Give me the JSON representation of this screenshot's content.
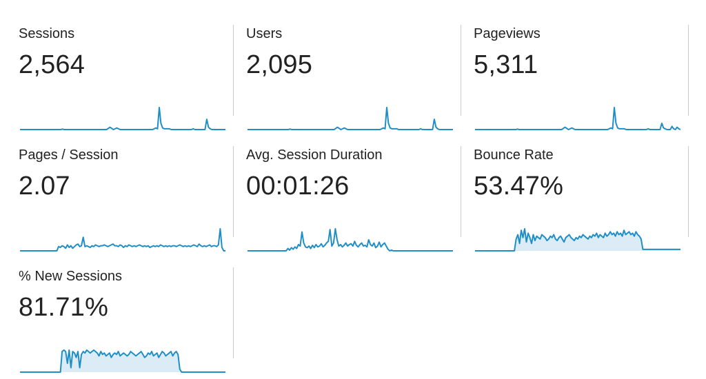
{
  "colors": {
    "line": "#1f8ec7",
    "fill": "#dcecf7",
    "divider": "#cccccc"
  },
  "metrics": [
    {
      "label": "Sessions",
      "value": "2,564",
      "spark": [
        0,
        0,
        0,
        0,
        0,
        0,
        0,
        0,
        0,
        0,
        0,
        0,
        0,
        0,
        0,
        0,
        0,
        0,
        0,
        0,
        0,
        0,
        0,
        0,
        0,
        0.5,
        0,
        0,
        0,
        0,
        0,
        0,
        0,
        0,
        0,
        0,
        0,
        0,
        0,
        0,
        0,
        0,
        0,
        0,
        0,
        0,
        0,
        0,
        0,
        0,
        0,
        0,
        1.5,
        3,
        1.5,
        0,
        1,
        2,
        1,
        0,
        0,
        0,
        0,
        0,
        0,
        0,
        0,
        0,
        0,
        0,
        0,
        0,
        0,
        0,
        0,
        0,
        0,
        0,
        0,
        1,
        2,
        1,
        28,
        8,
        2,
        1,
        1,
        1,
        1,
        0,
        0,
        0,
        0,
        0,
        0,
        0,
        0,
        0,
        0,
        0,
        0,
        0,
        1,
        0,
        0,
        0,
        0,
        0,
        0,
        0,
        13,
        3,
        1,
        0,
        0,
        0,
        0,
        0,
        0,
        0,
        0,
        0
      ],
      "fill": false
    },
    {
      "label": "Users",
      "value": "2,095",
      "spark": [
        0,
        0,
        0,
        0,
        0,
        0,
        0,
        0,
        0,
        0,
        0,
        0,
        0,
        0,
        0,
        0,
        0,
        0,
        0,
        0,
        0,
        0,
        0,
        0,
        0,
        0.5,
        0,
        0,
        0,
        0,
        0,
        0,
        0,
        0,
        0,
        0,
        0,
        0,
        0,
        0,
        0,
        0,
        0,
        0,
        0,
        0,
        0,
        0,
        0,
        0,
        0,
        0,
        1.5,
        3,
        1.5,
        0,
        1,
        2,
        1,
        0,
        0,
        0,
        0,
        0,
        0,
        0,
        0,
        0,
        0,
        0,
        0,
        0,
        0,
        0,
        0,
        0,
        0,
        0,
        0,
        1,
        2,
        1,
        28,
        8,
        2,
        1,
        1,
        1,
        1,
        0,
        0,
        0,
        0,
        0,
        0,
        0,
        0,
        0,
        0,
        0,
        0,
        0,
        1,
        0,
        0,
        0,
        0,
        0,
        0,
        0,
        13,
        3,
        1,
        0,
        0,
        0,
        0,
        0,
        0,
        0,
        0,
        0
      ],
      "fill": false
    },
    {
      "label": "Pageviews",
      "value": "5,311",
      "spark": [
        0,
        0,
        0,
        0,
        0,
        0,
        0,
        0,
        0,
        0,
        0,
        0,
        0,
        0,
        0,
        0,
        0,
        0,
        0,
        0,
        0,
        0,
        0,
        0,
        0,
        0.5,
        0,
        0,
        0,
        0,
        0,
        0,
        0,
        0,
        0,
        0,
        0,
        0,
        0,
        0,
        0,
        0,
        0,
        0,
        0,
        0,
        0,
        0,
        0,
        0,
        0,
        0,
        1.5,
        3,
        1.5,
        0,
        1,
        2,
        1,
        0,
        0,
        0,
        0,
        0,
        0,
        0,
        0,
        0,
        0,
        0,
        0,
        0,
        0,
        0,
        0,
        0,
        0,
        0,
        0,
        1,
        2,
        1,
        28,
        8,
        2,
        1,
        1,
        1,
        1,
        0,
        0,
        0,
        0,
        0,
        0,
        0,
        0,
        0,
        0,
        0,
        0,
        0,
        1,
        0,
        0,
        0,
        0,
        0,
        0,
        0,
        8,
        2,
        1,
        0,
        0,
        0,
        4,
        1,
        0,
        3,
        1,
        0
      ],
      "fill": false
    },
    {
      "label": "Pages / Session",
      "value": "2.07",
      "spark": [
        0,
        0,
        0,
        0,
        0,
        0,
        0,
        0,
        0,
        0,
        0,
        0,
        0,
        0,
        0,
        0,
        0,
        0,
        0,
        0,
        0,
        0,
        5,
        4,
        6,
        5,
        3,
        7,
        4,
        6,
        3,
        5,
        7,
        8,
        5,
        6,
        16,
        5,
        6,
        5,
        4,
        6,
        5,
        7,
        6,
        5,
        6,
        6,
        7,
        6,
        5,
        6,
        7,
        8,
        6,
        6,
        5,
        7,
        6,
        4,
        6,
        5,
        7,
        6,
        5,
        6,
        5,
        6,
        7,
        6,
        5,
        6,
        5,
        6,
        4,
        5,
        6,
        5,
        6,
        5,
        7,
        6,
        5,
        6,
        5,
        6,
        5,
        6,
        6,
        5,
        6,
        7,
        6,
        5,
        6,
        5,
        6,
        5,
        6,
        7,
        6,
        5,
        8,
        6,
        5,
        6,
        5,
        6,
        7,
        5,
        6,
        6,
        5,
        7,
        26,
        4,
        0,
        0
      ],
      "fill": false
    },
    {
      "label": "Avg. Session Duration",
      "value": "00:01:26",
      "spark": [
        0,
        0,
        0,
        0,
        0,
        0,
        0,
        0,
        0,
        0,
        0,
        0,
        0,
        0,
        0,
        0,
        0,
        0,
        0,
        0,
        0,
        0,
        0,
        3,
        1,
        4,
        2,
        5,
        3,
        8,
        6,
        24,
        10,
        5,
        4,
        6,
        3,
        7,
        4,
        8,
        5,
        6,
        9,
        5,
        7,
        10,
        12,
        27,
        6,
        10,
        28,
        14,
        6,
        8,
        5,
        7,
        10,
        6,
        8,
        9,
        6,
        12,
        7,
        5,
        8,
        10,
        6,
        7,
        5,
        14,
        8,
        6,
        10,
        4,
        6,
        11,
        5,
        8,
        10,
        6,
        2,
        0,
        1,
        0,
        0,
        0,
        0,
        0,
        0,
        0,
        0,
        0,
        0,
        0,
        0,
        0,
        0,
        0,
        0,
        0,
        0,
        0,
        0,
        0,
        0,
        0,
        0,
        0,
        0,
        0,
        0,
        0,
        0,
        0,
        0,
        0,
        0,
        0
      ],
      "fill": false
    },
    {
      "label": "Bounce Rate",
      "value": "53.47%",
      "spark": [
        0,
        0,
        0,
        0,
        0,
        0,
        0,
        0,
        0,
        0,
        0,
        0,
        0,
        0,
        0,
        0,
        0,
        0,
        0,
        0,
        0,
        0,
        0,
        0,
        16,
        22,
        10,
        28,
        18,
        30,
        12,
        24,
        18,
        10,
        22,
        14,
        20,
        18,
        16,
        22,
        20,
        18,
        14,
        16,
        20,
        18,
        22,
        16,
        14,
        18,
        20,
        16,
        12,
        18,
        20,
        22,
        18,
        16,
        14,
        18,
        16,
        20,
        18,
        22,
        20,
        18,
        16,
        20,
        18,
        22,
        20,
        24,
        18,
        22,
        20,
        18,
        24,
        20,
        22,
        26,
        22,
        24,
        20,
        26,
        22,
        24,
        20,
        28,
        22,
        24,
        26,
        22,
        24,
        20,
        26,
        22,
        20,
        16,
        2,
        2,
        2,
        2,
        2,
        2,
        2,
        2,
        2,
        2,
        2,
        2,
        2,
        2,
        2,
        2,
        2,
        2,
        2,
        2,
        2,
        2,
        2
      ],
      "fill": true
    },
    {
      "label": "% New Sessions",
      "value": "81.71%",
      "spark": [
        0,
        0,
        0,
        0,
        0,
        0,
        0,
        0,
        0,
        0,
        0,
        0,
        0,
        0,
        0,
        0,
        0,
        0,
        0,
        0,
        0,
        0,
        0,
        0,
        28,
        30,
        28,
        12,
        30,
        6,
        28,
        26,
        20,
        28,
        6,
        24,
        28,
        26,
        30,
        28,
        26,
        28,
        30,
        28,
        26,
        22,
        28,
        24,
        26,
        22,
        24,
        26,
        20,
        24,
        26,
        24,
        28,
        22,
        24,
        26,
        24,
        22,
        24,
        28,
        26,
        24,
        22,
        24,
        26,
        28,
        24,
        20,
        22,
        26,
        24,
        28,
        22,
        24,
        26,
        20,
        24,
        28,
        26,
        22,
        24,
        26,
        28,
        22,
        26,
        28,
        24,
        4,
        0,
        0,
        0,
        0,
        0,
        0,
        0,
        0,
        0,
        0,
        0,
        0,
        0,
        0,
        0,
        0,
        0,
        0,
        0,
        0,
        0,
        0,
        0,
        0,
        0,
        0
      ],
      "fill": true
    }
  ]
}
